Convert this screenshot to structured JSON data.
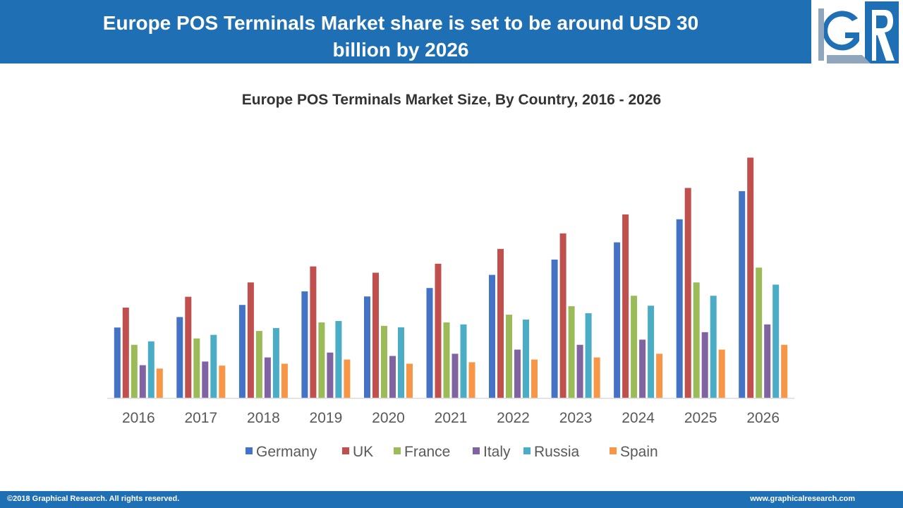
{
  "header": {
    "title_line1": "Europe POS Terminals Market share is set to be around USD 30",
    "title_line2": "billion by 2026"
  },
  "logo": {
    "icon": "graphical-research-gr-logo",
    "colors": {
      "primary": "#1f6fb5",
      "accent": "#8fa6bd"
    }
  },
  "chart_data": {
    "type": "bar",
    "title": "Europe POS Terminals Market Size, By Country, 2016  - 2026",
    "xlabel": "",
    "ylabel": "",
    "ylim": [
      0,
      100
    ],
    "y_axis_visible": false,
    "grid": false,
    "legend_position": "bottom",
    "categories": [
      "2016",
      "2017",
      "2018",
      "2019",
      "2020",
      "2021",
      "2022",
      "2023",
      "2024",
      "2025",
      "2026"
    ],
    "series": [
      {
        "name": "Germany",
        "color": "#4472c4",
        "values": [
          29.0,
          33.3,
          38.3,
          43.9,
          41.8,
          45.3,
          50.7,
          57.0,
          64.1,
          73.6,
          85.2
        ]
      },
      {
        "name": "UK",
        "color": "#c0504d",
        "values": [
          37.2,
          41.7,
          47.6,
          54.2,
          51.6,
          55.3,
          61.4,
          67.8,
          75.6,
          86.5,
          99.0
        ]
      },
      {
        "name": "France",
        "color": "#9bbb59",
        "values": [
          21.9,
          24.5,
          27.6,
          31.1,
          29.7,
          31.1,
          34.3,
          37.8,
          42.1,
          47.6,
          53.7
        ]
      },
      {
        "name": "Italy",
        "color": "#8064a2",
        "values": [
          13.5,
          15.0,
          16.7,
          18.7,
          17.3,
          18.2,
          19.9,
          21.9,
          24.0,
          27.1,
          30.3
        ]
      },
      {
        "name": "Russia",
        "color": "#4bacc6",
        "values": [
          23.3,
          26.0,
          28.8,
          31.7,
          29.1,
          30.3,
          32.3,
          34.9,
          38.0,
          42.1,
          46.7
        ]
      },
      {
        "name": "Spain",
        "color": "#f79646",
        "values": [
          12.1,
          13.3,
          14.1,
          15.8,
          14.1,
          14.7,
          15.8,
          16.7,
          18.2,
          19.9,
          21.9
        ]
      }
    ],
    "axis_line_color": "#d9d9d9"
  },
  "footer": {
    "copyright": "©2018 Graphical Research. All rights reserved.",
    "website": "www.graphicalresearch.com"
  }
}
